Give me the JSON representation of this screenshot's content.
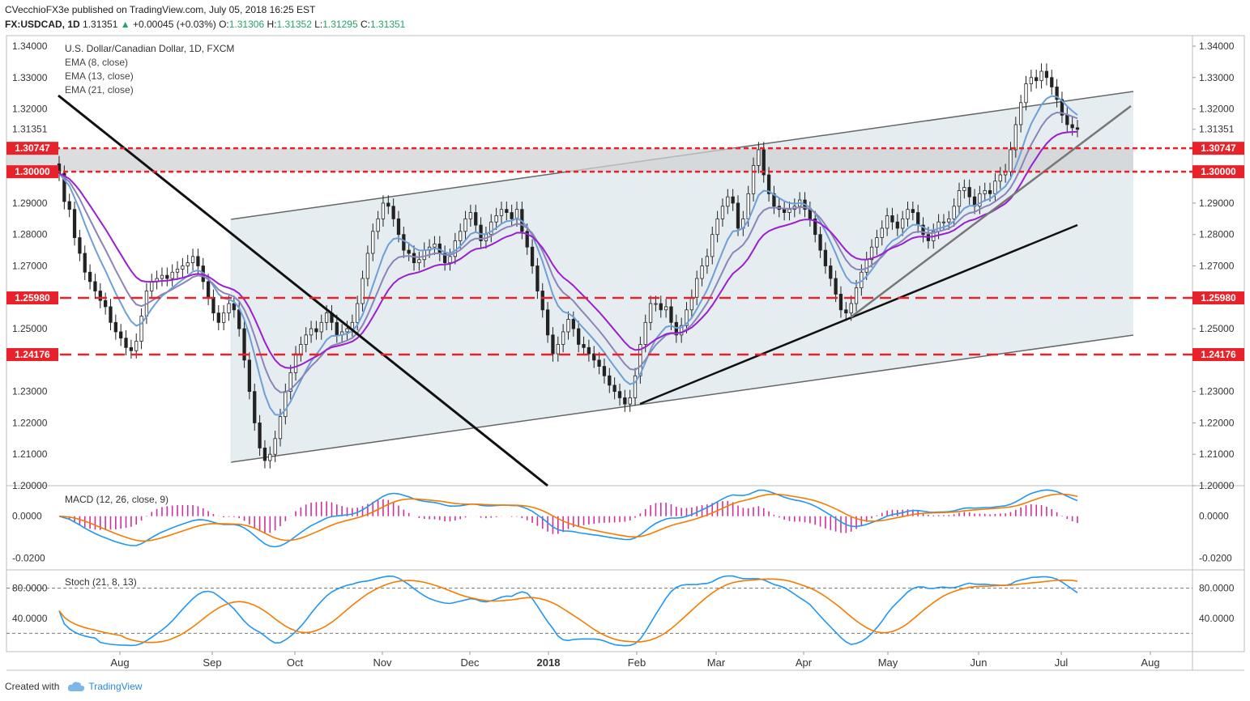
{
  "header": {
    "publisher": "CVecchioFX3e",
    "published_text": "published on TradingView.com, July 05, 2018 16:25 EST",
    "symbol": "FX:USDCAD, 1D",
    "last": "1.31351",
    "change": "+0.00045 (+0.03%)",
    "o_label": "O:",
    "o": "1.31306",
    "h_label": "H:",
    "h": "1.31352",
    "l_label": "L:",
    "l": "1.31295",
    "c_label": "C:",
    "c": "1.31351"
  },
  "legend": {
    "title": "U.S. Dollar/Canadian Dollar, 1D, FXCM",
    "ema8": "EMA (8, close)",
    "ema13": "EMA (13, close)",
    "ema21": "EMA (21, close)"
  },
  "footer": {
    "created_with": "Created with",
    "brand": "TradingView"
  },
  "colors": {
    "ema8": "#6e9fd6",
    "ema13": "#8a84b8",
    "ema21": "#9b1fd1",
    "level_line": "#e8222a",
    "level_label_bg": "#e8222a",
    "channel_fill": "#dfe8ec",
    "zone_fill": "#cfd2d4",
    "macd_line": "#2196f3",
    "signal_line": "#f57c00",
    "hist": "#d0309a",
    "stoch_k": "#2196f3",
    "stoch_d": "#f57c00"
  },
  "chart_data": [
    {
      "type": "candlestick",
      "title": "U.S. Dollar/Canadian Dollar, 1D, FXCM",
      "x_ticks": [
        "Aug",
        "Sep",
        "Oct",
        "Nov",
        "Dec",
        "2018",
        "Feb",
        "Mar",
        "Apr",
        "May",
        "Jun",
        "Jul",
        "Aug"
      ],
      "y_ticks": [
        "1.34000",
        "1.33000",
        "1.32000",
        "1.31351",
        "1.30747",
        "1.30000",
        "1.29000",
        "1.28000",
        "1.27000",
        "1.25980",
        "1.25000",
        "1.24176",
        "1.23000",
        "1.22000",
        "1.21000",
        "1.20000"
      ],
      "ylim": [
        1.2,
        1.34
      ],
      "last_price": 1.31351,
      "horizontal_levels": [
        1.30747,
        1.3,
        1.2598,
        1.24176
      ],
      "shaded_zone": [
        1.3,
        1.30747
      ],
      "close_series": [
        1.2995,
        1.2905,
        1.288,
        1.279,
        1.274,
        1.268,
        1.265,
        1.262,
        1.259,
        1.257,
        1.252,
        1.249,
        1.247,
        1.244,
        1.243,
        1.246,
        1.254,
        1.262,
        1.265,
        1.266,
        1.267,
        1.266,
        1.268,
        1.269,
        1.27,
        1.271,
        1.273,
        1.27,
        1.265,
        1.26,
        1.255,
        1.252,
        1.255,
        1.258,
        1.256,
        1.25,
        1.24,
        1.23,
        1.22,
        1.212,
        1.208,
        1.21,
        1.215,
        1.222,
        1.23,
        1.236,
        1.242,
        1.245,
        1.248,
        1.25,
        1.249,
        1.252,
        1.255,
        1.252,
        1.248,
        1.249,
        1.25,
        1.252,
        1.258,
        1.266,
        1.274,
        1.281,
        1.285,
        1.29,
        1.289,
        1.285,
        1.28,
        1.275,
        1.274,
        1.271,
        1.272,
        1.275,
        1.276,
        1.277,
        1.274,
        1.271,
        1.273,
        1.278,
        1.281,
        1.285,
        1.287,
        1.283,
        1.278,
        1.28,
        1.284,
        1.286,
        1.288,
        1.287,
        1.285,
        1.288,
        1.281,
        1.276,
        1.27,
        1.262,
        1.256,
        1.248,
        1.242,
        1.245,
        1.249,
        1.253,
        1.25,
        1.245,
        1.244,
        1.242,
        1.24,
        1.238,
        1.235,
        1.232,
        1.23,
        1.228,
        1.226,
        1.228,
        1.235,
        1.245,
        1.252,
        1.258,
        1.258,
        1.256,
        1.257,
        1.252,
        1.248,
        1.251,
        1.256,
        1.26,
        1.266,
        1.27,
        1.273,
        1.28,
        1.285,
        1.289,
        1.292,
        1.29,
        1.282,
        1.285,
        1.293,
        1.302,
        1.307,
        1.299,
        1.293,
        1.289,
        1.288,
        1.287,
        1.288,
        1.289,
        1.291,
        1.288,
        1.285,
        1.28,
        1.275,
        1.27,
        1.266,
        1.261,
        1.256,
        1.255,
        1.258,
        1.263,
        1.268,
        1.272,
        1.276,
        1.279,
        1.282,
        1.286,
        1.284,
        1.282,
        1.285,
        1.288,
        1.287,
        1.283,
        1.28,
        1.278,
        1.281,
        1.284,
        1.284,
        1.285,
        1.289,
        1.294,
        1.295,
        1.292,
        1.289,
        1.293,
        1.294,
        1.293,
        1.297,
        1.299,
        1.3,
        1.307,
        1.315,
        1.322,
        1.328,
        1.33,
        1.329,
        1.332,
        1.33,
        1.327,
        1.323,
        1.318,
        1.315,
        1.314,
        1.3135
      ]
    },
    {
      "type": "line",
      "title": "MACD (12, 26, close, 9)",
      "y_ticks": [
        "0.0000",
        "-0.0200"
      ],
      "ylim": [
        -0.024,
        0.013
      ],
      "series": [
        {
          "name": "MACD"
        },
        {
          "name": "Signal"
        },
        {
          "name": "Histogram"
        }
      ]
    },
    {
      "type": "line",
      "title": "Stoch (21, 8, 13)",
      "y_ticks": [
        "80.0000",
        "40.0000"
      ],
      "ylim": [
        0,
        100
      ],
      "guides": [
        80,
        20
      ],
      "series": [
        {
          "name": "%K"
        },
        {
          "name": "%D"
        }
      ]
    }
  ]
}
